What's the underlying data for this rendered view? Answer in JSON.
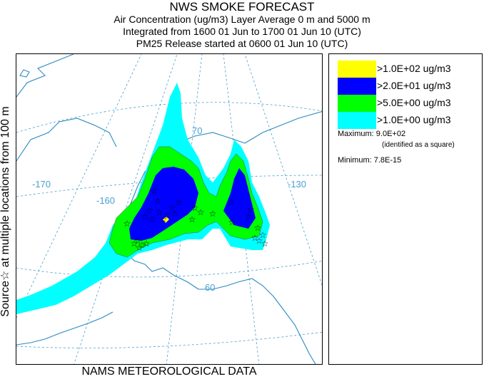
{
  "header": {
    "title": "NWS SMOKE FORECAST",
    "line1": "Air Concentration (ug/m3) Layer Average    0 m and  5000 m",
    "line2": "Integrated from 1600 01 Jun to 1700 01 Jun 10 (UTC)",
    "line3": "PM25 Release started at 0600 01 Jun 10 (UTC)"
  },
  "sidebar": {
    "text": "Source☆ at multiple locations    from  100 m"
  },
  "footer": {
    "text": "NAMS METEOROLOGICAL DATA"
  },
  "map": {
    "lon_labels": [
      "-170",
      "-160",
      "-130"
    ],
    "lat_labels": [
      "70",
      "60"
    ],
    "colors": {
      "background": "#ffffff",
      "coast": "#2a8ac0",
      "graticule": "#4aa0d0",
      "contour_line": "#555555",
      "star": "#000000",
      "band_1": "#00ffff",
      "band_5": "#00ff00",
      "band_20": "#0000ff",
      "band_100": "#ffff00"
    },
    "source_marker": "☆"
  },
  "legend": {
    "items": [
      {
        "label": ">1.0E+02 ug/m3",
        "color": "#ffff00"
      },
      {
        "label": ">2.0E+01 ug/m3",
        "color": "#0000ff"
      },
      {
        "label": ">5.0E+00 ug/m3",
        "color": "#00ff00"
      },
      {
        "label": ">1.0E+00 ug/m3",
        "color": "#00ffff"
      }
    ],
    "maximum_label": "Maximum: 9.0E+02",
    "maximum_note": "(identified as a square)",
    "minimum_label": "Minimum: 7.8E-15"
  }
}
